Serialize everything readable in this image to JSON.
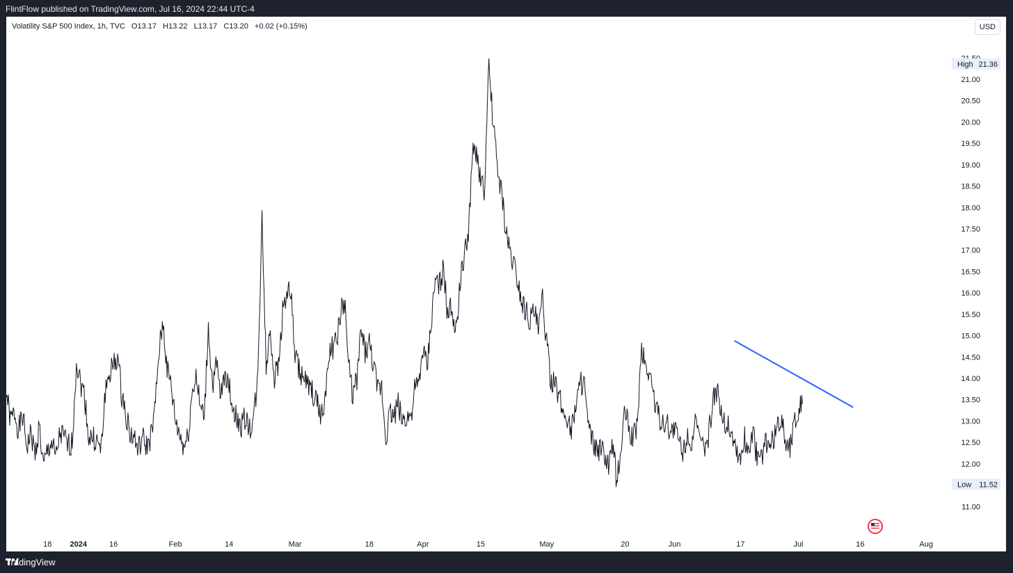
{
  "header": {
    "published": "FlintFlow published on TradingView.com, Jul 16, 2024 22:44 UTC-4"
  },
  "footer": {
    "brand": "TradingView"
  },
  "legend": {
    "symbol": "Volatility S&P 500 Index, 1h, TVC",
    "open": "O13.17",
    "high": "H13.22",
    "low": "L13.17",
    "close": "C13.20",
    "change": "+0.02 (+0.15%)"
  },
  "currency": "USD",
  "colors": {
    "background": "#1e222d",
    "chart_bg": "#ffffff",
    "price_line": "#131722",
    "trendline": "#2962ff",
    "badge_bg": "#e8eefb",
    "accent_red": "#f23645"
  },
  "chart_data": {
    "type": "line",
    "title": "Volatility S&P 500 Index, 1h, TVC",
    "xlabel": "",
    "ylabel": "",
    "ylim": [
      10.5,
      21.7
    ],
    "y_ticks": [
      "21.50",
      "21.00",
      "20.50",
      "20.00",
      "19.50",
      "19.00",
      "18.50",
      "18.00",
      "17.50",
      "17.00",
      "16.50",
      "16.00",
      "15.50",
      "15.00",
      "14.50",
      "14.00",
      "13.50",
      "13.00",
      "12.50",
      "12.00",
      "11.00"
    ],
    "x_ticks": [
      {
        "label": "18",
        "bold": false
      },
      {
        "label": "2024",
        "bold": true
      },
      {
        "label": "16",
        "bold": false
      },
      {
        "label": "Feb",
        "bold": false
      },
      {
        "label": "14",
        "bold": false
      },
      {
        "label": "Mar",
        "bold": false
      },
      {
        "label": "18",
        "bold": false
      },
      {
        "label": "Apr",
        "bold": false
      },
      {
        "label": "15",
        "bold": false
      },
      {
        "label": "May",
        "bold": false
      },
      {
        "label": "20",
        "bold": false
      },
      {
        "label": "Jun",
        "bold": false
      },
      {
        "label": "17",
        "bold": false
      },
      {
        "label": "Jul",
        "bold": false
      },
      {
        "label": "16",
        "bold": false
      },
      {
        "label": "Aug",
        "bold": false
      }
    ],
    "x_ticks_day": [
      10,
      17.5,
      26,
      41,
      54,
      70,
      88,
      101,
      115,
      131,
      150,
      162,
      178,
      192,
      207,
      223
    ],
    "series": [
      {
        "values": [
          [
            0,
            13.7
          ],
          [
            1,
            13.0
          ],
          [
            2,
            13.2
          ],
          [
            3,
            12.8
          ],
          [
            4,
            13.1
          ],
          [
            5,
            12.4
          ],
          [
            6,
            12.7
          ],
          [
            7,
            12.2
          ],
          [
            8,
            12.9
          ],
          [
            9,
            11.9
          ],
          [
            10,
            12.3
          ],
          [
            11,
            12.5
          ],
          [
            12,
            12.1
          ],
          [
            13,
            12.7
          ],
          [
            14,
            12.6
          ],
          [
            15,
            12.4
          ],
          [
            16,
            12.5
          ],
          [
            17,
            14.4
          ],
          [
            18,
            13.9
          ],
          [
            19,
            13.6
          ],
          [
            20,
            12.6
          ],
          [
            21,
            12.6
          ],
          [
            22,
            12.5
          ],
          [
            23,
            12.3
          ],
          [
            24,
            13.7
          ],
          [
            25,
            14.1
          ],
          [
            26,
            14.3
          ],
          [
            27,
            14.5
          ],
          [
            28,
            13.6
          ],
          [
            29,
            13.2
          ],
          [
            30,
            12.7
          ],
          [
            31,
            12.6
          ],
          [
            32,
            12.3
          ],
          [
            33,
            12.6
          ],
          [
            34,
            12.4
          ],
          [
            35,
            12.6
          ],
          [
            36,
            13.2
          ],
          [
            37,
            14.6
          ],
          [
            38,
            15.3
          ],
          [
            39,
            14.2
          ],
          [
            40,
            13.8
          ],
          [
            41,
            13.0
          ],
          [
            42,
            12.7
          ],
          [
            43,
            12.4
          ],
          [
            44,
            12.6
          ],
          [
            45,
            13.6
          ],
          [
            46,
            14.1
          ],
          [
            47,
            13.3
          ],
          [
            48,
            13.1
          ],
          [
            49,
            15.2
          ],
          [
            50,
            13.8
          ],
          [
            51,
            14.3
          ],
          [
            52,
            13.5
          ],
          [
            53,
            14.2
          ],
          [
            54,
            13.8
          ],
          [
            55,
            13.3
          ],
          [
            56,
            13.0
          ],
          [
            57,
            12.9
          ],
          [
            58,
            13.1
          ],
          [
            59,
            12.8
          ],
          [
            60,
            13.1
          ],
          [
            61,
            14.0
          ],
          [
            62,
            17.9
          ],
          [
            63,
            14.2
          ],
          [
            64,
            15.2
          ],
          [
            65,
            14.0
          ],
          [
            66,
            14.3
          ],
          [
            67,
            15.6
          ],
          [
            68,
            16.0
          ],
          [
            69,
            16.0
          ],
          [
            70,
            14.5
          ],
          [
            71,
            14.2
          ],
          [
            72,
            14.0
          ],
          [
            73,
            13.8
          ],
          [
            74,
            13.7
          ],
          [
            75,
            13.5
          ],
          [
            76,
            13.2
          ],
          [
            77,
            13.2
          ],
          [
            78,
            14.5
          ],
          [
            79,
            14.7
          ],
          [
            80,
            14.8
          ],
          [
            81,
            15.5
          ],
          [
            82,
            15.8
          ],
          [
            83,
            14.3
          ],
          [
            84,
            13.6
          ],
          [
            85,
            14.0
          ],
          [
            86,
            15.1
          ],
          [
            87,
            14.6
          ],
          [
            88,
            14.8
          ],
          [
            89,
            14.3
          ],
          [
            90,
            13.7
          ],
          [
            91,
            13.8
          ],
          [
            92,
            12.6
          ],
          [
            93,
            13.2
          ],
          [
            94,
            13.1
          ],
          [
            95,
            13.4
          ],
          [
            96,
            13.0
          ],
          [
            97,
            13.1
          ],
          [
            98,
            13.1
          ],
          [
            99,
            13.7
          ],
          [
            100,
            13.8
          ],
          [
            101,
            14.7
          ],
          [
            102,
            14.2
          ],
          [
            103,
            15.3
          ],
          [
            104,
            16.3
          ],
          [
            105,
            16.2
          ],
          [
            106,
            16.6
          ],
          [
            107,
            15.4
          ],
          [
            108,
            15.7
          ],
          [
            109,
            15.1
          ],
          [
            110,
            16.2
          ],
          [
            111,
            16.8
          ],
          [
            112,
            17.4
          ],
          [
            113,
            19.2
          ],
          [
            114,
            19.3
          ],
          [
            115,
            18.6
          ],
          [
            116,
            18.4
          ],
          [
            117,
            21.3
          ],
          [
            118,
            20.0
          ],
          [
            119,
            19.0
          ],
          [
            120,
            18.4
          ],
          [
            121,
            17.5
          ],
          [
            122,
            17.0
          ],
          [
            123,
            16.7
          ],
          [
            124,
            16.3
          ],
          [
            125,
            15.8
          ],
          [
            126,
            15.6
          ],
          [
            127,
            15.4
          ],
          [
            128,
            15.6
          ],
          [
            129,
            15.1
          ],
          [
            130,
            15.9
          ],
          [
            131,
            14.8
          ],
          [
            132,
            14.0
          ],
          [
            133,
            13.8
          ],
          [
            134,
            13.6
          ],
          [
            135,
            13.2
          ],
          [
            136,
            13.1
          ],
          [
            137,
            12.8
          ],
          [
            138,
            13.4
          ],
          [
            139,
            13.8
          ],
          [
            140,
            14.0
          ],
          [
            141,
            12.9
          ],
          [
            142,
            12.5
          ],
          [
            143,
            12.3
          ],
          [
            144,
            12.3
          ],
          [
            145,
            12.2
          ],
          [
            146,
            11.9
          ],
          [
            147,
            12.4
          ],
          [
            148,
            11.6
          ],
          [
            149,
            12.3
          ],
          [
            150,
            13.3
          ],
          [
            151,
            12.8
          ],
          [
            152,
            12.6
          ],
          [
            153,
            13.0
          ],
          [
            154,
            14.7
          ],
          [
            155,
            14.3
          ],
          [
            156,
            14.1
          ],
          [
            157,
            13.6
          ],
          [
            158,
            13.1
          ],
          [
            159,
            13.0
          ],
          [
            160,
            12.9
          ],
          [
            161,
            12.8
          ],
          [
            162,
            12.8
          ],
          [
            163,
            12.6
          ],
          [
            164,
            12.2
          ],
          [
            165,
            12.7
          ],
          [
            166,
            12.5
          ],
          [
            167,
            12.9
          ],
          [
            168,
            12.6
          ],
          [
            169,
            12.3
          ],
          [
            170,
            12.5
          ],
          [
            171,
            13.2
          ],
          [
            172,
            13.8
          ],
          [
            173,
            13.4
          ],
          [
            174,
            13.0
          ],
          [
            175,
            12.9
          ],
          [
            176,
            12.7
          ],
          [
            177,
            12.3
          ],
          [
            178,
            12.1
          ],
          [
            179,
            12.6
          ],
          [
            180,
            12.3
          ],
          [
            181,
            12.8
          ],
          [
            182,
            12.1
          ],
          [
            183,
            12.1
          ],
          [
            184,
            12.5
          ],
          [
            185,
            12.4
          ],
          [
            186,
            12.6
          ],
          [
            187,
            12.8
          ],
          [
            188,
            13.1
          ],
          [
            189,
            12.5
          ],
          [
            190,
            12.4
          ],
          [
            191,
            13.0
          ],
          [
            192,
            13.2
          ],
          [
            193,
            13.4
          ]
        ]
      }
    ],
    "trendline": {
      "start": [
        176.5,
        14.88
      ],
      "end": [
        205.3,
        13.32
      ]
    },
    "high_label": "High",
    "high_value": "21.36",
    "low_label": "Low",
    "low_value": "11.52",
    "grid": false,
    "legend_position": "top-left"
  }
}
